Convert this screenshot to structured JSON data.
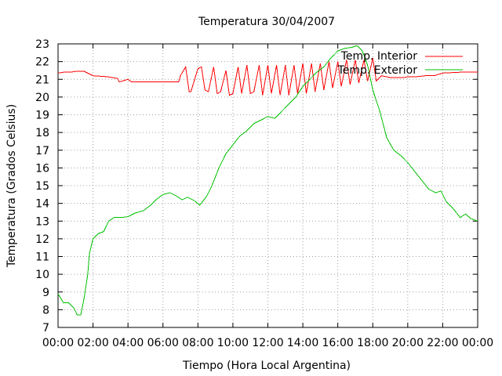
{
  "chart_data": {
    "type": "line",
    "title": "Temperatura 30/04/2007",
    "xlabel": "Tiempo (Hora Local Argentina)",
    "ylabel": "Temperatura (Grados Celsius)",
    "xlim": [
      0,
      24
    ],
    "ylim": [
      7,
      23
    ],
    "x_ticks": [
      "00:00",
      "02:00",
      "04:00",
      "06:00",
      "08:00",
      "10:00",
      "12:00",
      "14:00",
      "16:00",
      "18:00",
      "20:00",
      "22:00",
      "00:00"
    ],
    "y_ticks": [
      7,
      8,
      9,
      10,
      11,
      12,
      13,
      14,
      15,
      16,
      17,
      18,
      19,
      20,
      21,
      22,
      23
    ],
    "grid": true,
    "legend_position": "top-right",
    "series": [
      {
        "name": "Temp. Interior",
        "color": "#ff0000",
        "points": [
          [
            0.0,
            21.35
          ],
          [
            0.3,
            21.4
          ],
          [
            0.7,
            21.4
          ],
          [
            1.0,
            21.45
          ],
          [
            1.5,
            21.45
          ],
          [
            2.0,
            21.2
          ],
          [
            2.8,
            21.15
          ],
          [
            3.4,
            21.05
          ],
          [
            3.5,
            20.85
          ],
          [
            4.0,
            21.0
          ],
          [
            4.2,
            20.85
          ],
          [
            5.0,
            20.85
          ],
          [
            6.0,
            20.85
          ],
          [
            6.9,
            20.85
          ],
          [
            7.0,
            21.2
          ],
          [
            7.3,
            21.7
          ],
          [
            7.5,
            20.3
          ],
          [
            7.6,
            20.3
          ],
          [
            8.0,
            21.6
          ],
          [
            8.2,
            21.7
          ],
          [
            8.4,
            20.4
          ],
          [
            8.6,
            20.3
          ],
          [
            8.9,
            21.7
          ],
          [
            9.1,
            20.2
          ],
          [
            9.3,
            20.3
          ],
          [
            9.6,
            21.5
          ],
          [
            9.8,
            20.1
          ],
          [
            10.0,
            20.2
          ],
          [
            10.3,
            21.7
          ],
          [
            10.5,
            20.2
          ],
          [
            10.8,
            21.8
          ],
          [
            11.0,
            20.2
          ],
          [
            11.2,
            20.3
          ],
          [
            11.5,
            21.8
          ],
          [
            11.7,
            20.1
          ],
          [
            12.0,
            21.8
          ],
          [
            12.2,
            20.2
          ],
          [
            12.5,
            21.8
          ],
          [
            12.7,
            20.1
          ],
          [
            13.0,
            21.8
          ],
          [
            13.2,
            20.1
          ],
          [
            13.5,
            21.8
          ],
          [
            13.7,
            20.2
          ],
          [
            14.0,
            21.9
          ],
          [
            14.2,
            20.2
          ],
          [
            14.5,
            21.9
          ],
          [
            14.7,
            20.3
          ],
          [
            15.0,
            21.9
          ],
          [
            15.2,
            20.4
          ],
          [
            15.5,
            22.0
          ],
          [
            15.7,
            20.5
          ],
          [
            16.0,
            22.0
          ],
          [
            16.2,
            20.6
          ],
          [
            16.5,
            22.1
          ],
          [
            16.7,
            20.7
          ],
          [
            17.0,
            22.1
          ],
          [
            17.2,
            20.8
          ],
          [
            17.5,
            22.1
          ],
          [
            17.7,
            20.9
          ],
          [
            18.0,
            22.2
          ],
          [
            18.2,
            20.9
          ],
          [
            18.5,
            21.2
          ],
          [
            19.0,
            21.1
          ],
          [
            19.8,
            21.1
          ],
          [
            20.0,
            21.15
          ],
          [
            20.5,
            21.15
          ],
          [
            21.0,
            21.2
          ],
          [
            21.5,
            21.2
          ],
          [
            22.0,
            21.35
          ],
          [
            23.0,
            21.4
          ],
          [
            24.0,
            21.4
          ]
        ]
      },
      {
        "name": "Temp. Exterior",
        "color": "#00c000",
        "points": [
          [
            0.0,
            8.9
          ],
          [
            0.3,
            8.4
          ],
          [
            0.6,
            8.4
          ],
          [
            0.9,
            8.1
          ],
          [
            1.1,
            7.7
          ],
          [
            1.3,
            7.7
          ],
          [
            1.5,
            8.7
          ],
          [
            1.7,
            10.0
          ],
          [
            1.8,
            11.2
          ],
          [
            2.0,
            12.0
          ],
          [
            2.3,
            12.3
          ],
          [
            2.6,
            12.4
          ],
          [
            2.9,
            13.0
          ],
          [
            3.2,
            13.2
          ],
          [
            3.6,
            13.2
          ],
          [
            4.0,
            13.25
          ],
          [
            4.4,
            13.45
          ],
          [
            4.9,
            13.6
          ],
          [
            5.3,
            13.9
          ],
          [
            5.6,
            14.2
          ],
          [
            6.0,
            14.5
          ],
          [
            6.4,
            14.6
          ],
          [
            6.8,
            14.4
          ],
          [
            7.1,
            14.2
          ],
          [
            7.4,
            14.35
          ],
          [
            7.8,
            14.15
          ],
          [
            8.1,
            13.9
          ],
          [
            8.5,
            14.4
          ],
          [
            8.8,
            15.0
          ],
          [
            9.2,
            16.0
          ],
          [
            9.6,
            16.8
          ],
          [
            10.0,
            17.3
          ],
          [
            10.4,
            17.8
          ],
          [
            10.8,
            18.1
          ],
          [
            11.2,
            18.5
          ],
          [
            11.6,
            18.7
          ],
          [
            12.0,
            18.9
          ],
          [
            12.4,
            18.8
          ],
          [
            12.8,
            19.2
          ],
          [
            13.2,
            19.6
          ],
          [
            13.6,
            20.0
          ],
          [
            14.0,
            20.6
          ],
          [
            14.4,
            21.0
          ],
          [
            14.8,
            21.4
          ],
          [
            15.2,
            21.7
          ],
          [
            15.6,
            22.2
          ],
          [
            16.0,
            22.6
          ],
          [
            16.4,
            22.75
          ],
          [
            16.8,
            22.8
          ],
          [
            17.1,
            22.9
          ],
          [
            17.4,
            22.6
          ],
          [
            17.7,
            21.8
          ],
          [
            18.0,
            20.4
          ],
          [
            18.4,
            19.2
          ],
          [
            18.8,
            17.7
          ],
          [
            19.2,
            17.0
          ],
          [
            19.6,
            16.7
          ],
          [
            20.0,
            16.3
          ],
          [
            20.4,
            15.8
          ],
          [
            20.8,
            15.3
          ],
          [
            21.2,
            14.8
          ],
          [
            21.6,
            14.6
          ],
          [
            21.9,
            14.7
          ],
          [
            22.2,
            14.1
          ],
          [
            22.6,
            13.7
          ],
          [
            23.0,
            13.2
          ],
          [
            23.3,
            13.4
          ],
          [
            23.6,
            13.15
          ],
          [
            24.0,
            13.0
          ]
        ]
      }
    ]
  }
}
